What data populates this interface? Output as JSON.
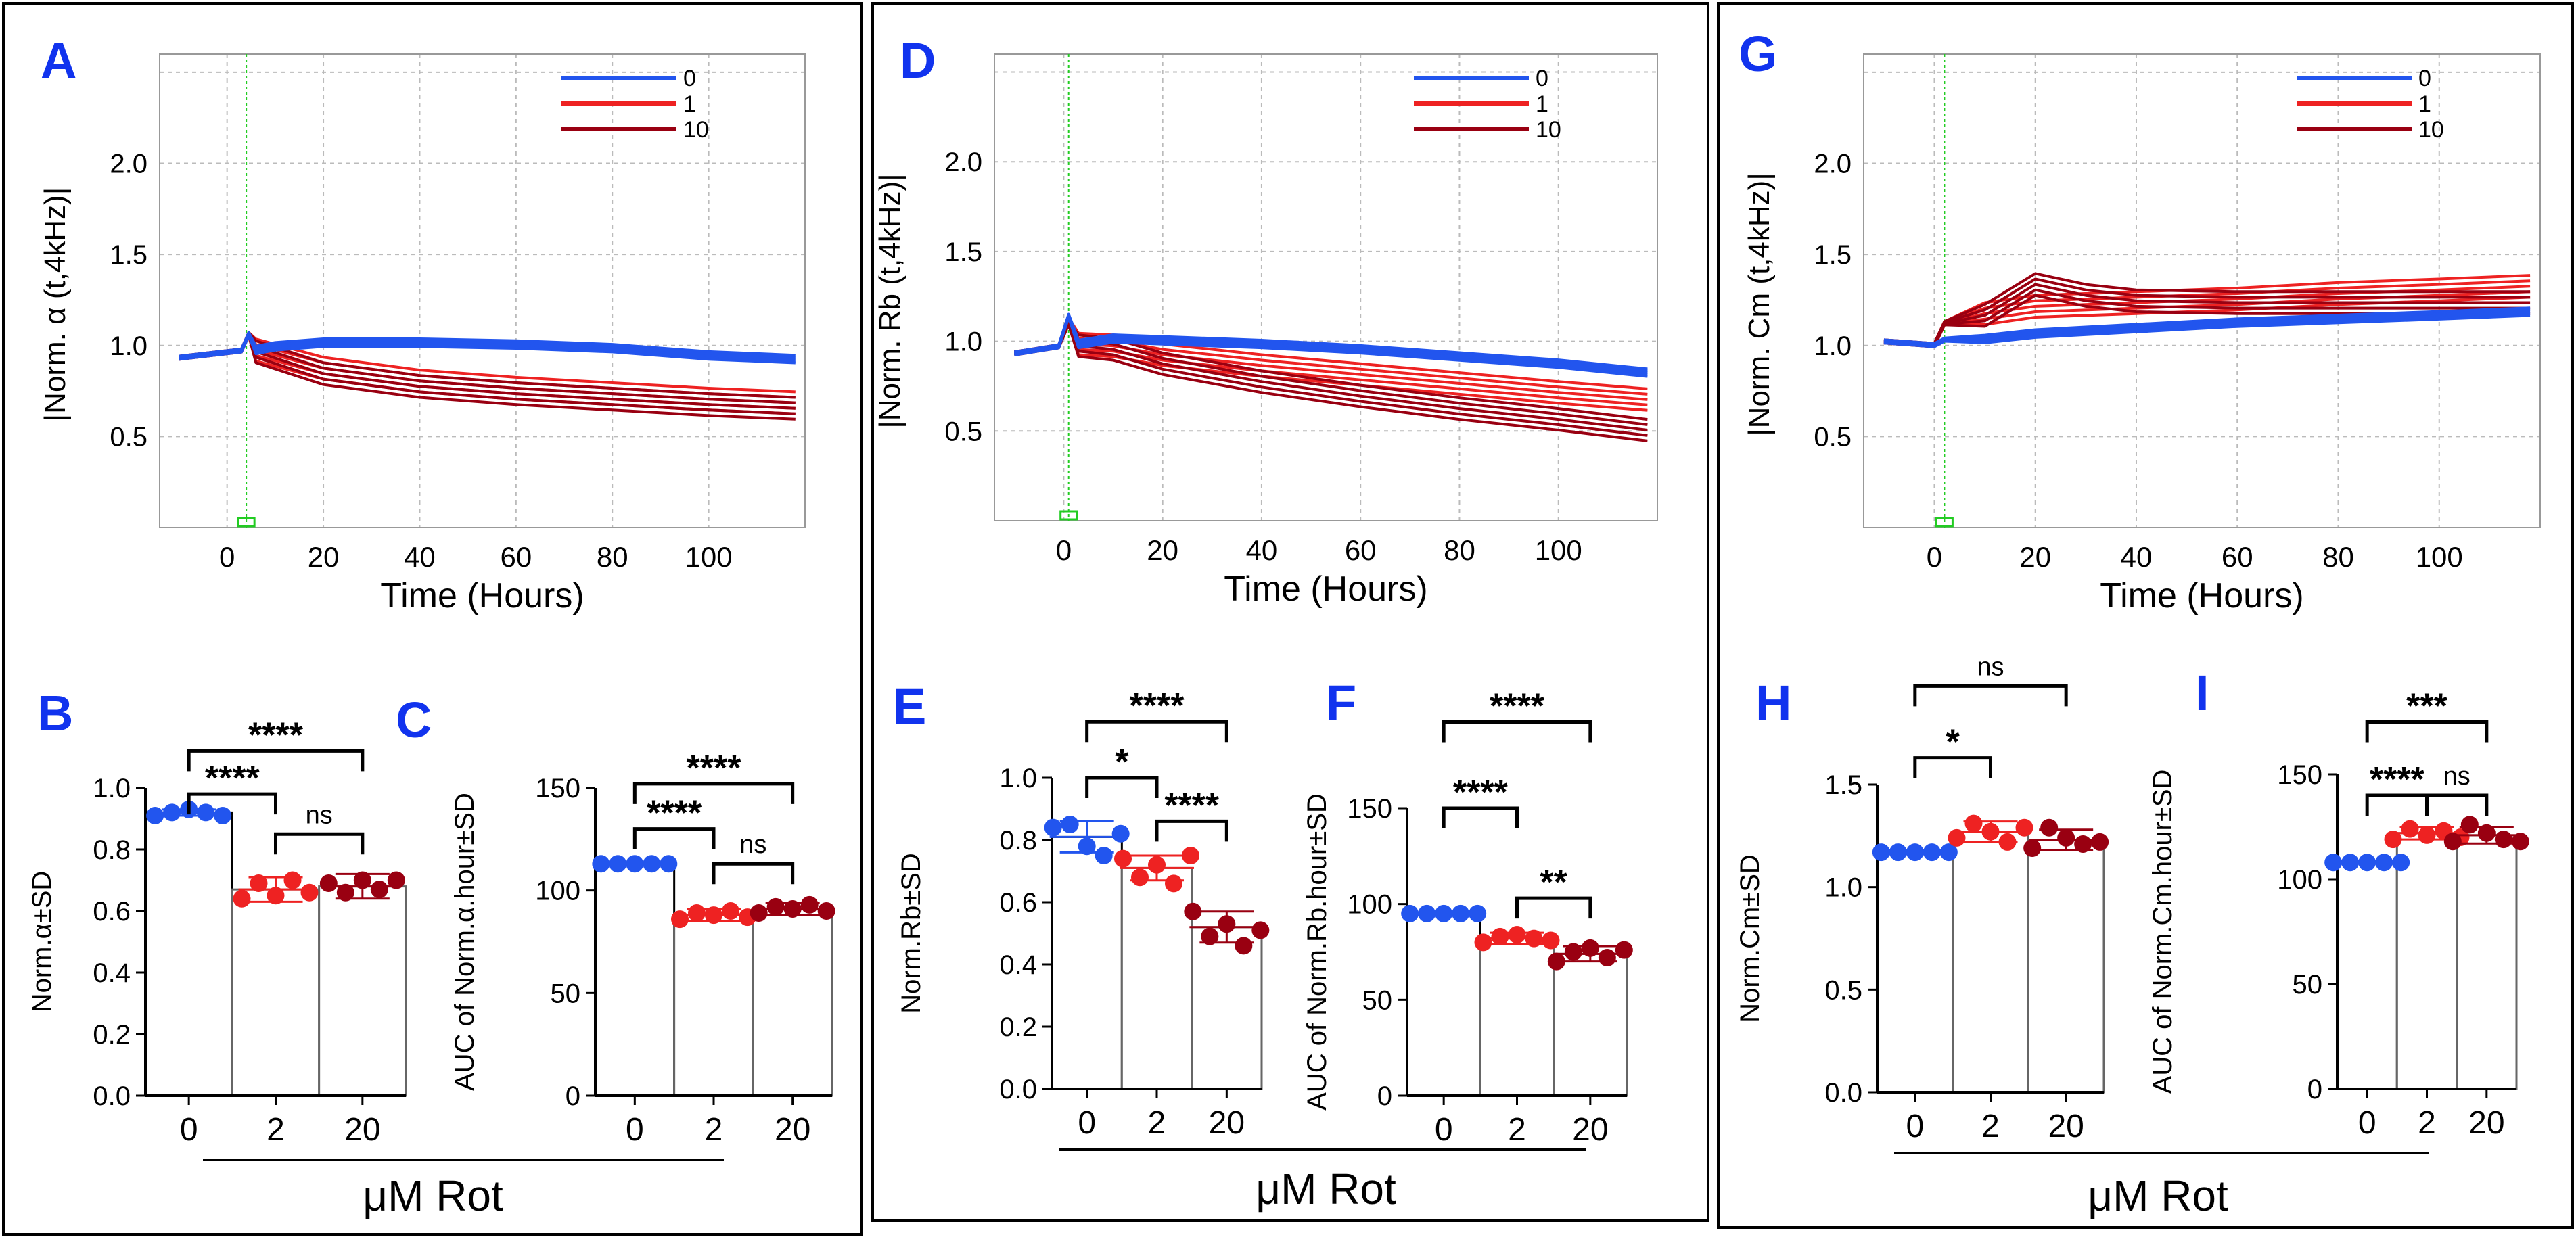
{
  "figure": {
    "xlabel": "μM Rot",
    "colors": {
      "c0": "#2255ee",
      "c1": "#ee2222",
      "c10": "#990011",
      "grid": "#bbbbbb",
      "label": "#1133ee",
      "axis": "#000000"
    }
  },
  "chart_data": [
    {
      "id": "A",
      "type": "line",
      "title": "A",
      "xlabel": "Time (Hours)",
      "ylabel": "|Norm. α (t,4kHz)|",
      "xlim": [
        -14,
        120
      ],
      "ylim": [
        0,
        2.6
      ],
      "xticks": [
        "0",
        "20",
        "40",
        "60",
        "80",
        "100"
      ],
      "xtick_values": [
        0,
        20,
        40,
        60,
        80,
        100
      ],
      "yticks": [
        "0.5",
        "1.0",
        "1.5",
        "2.0"
      ],
      "ytick_values": [
        0.5,
        1.0,
        1.5,
        2.0
      ],
      "grid": true,
      "legend": "top-right",
      "event_x": 4,
      "series": [
        {
          "name": "0",
          "color": "blue",
          "points": [
            [
              -10,
              0.93
            ],
            [
              3,
              0.97
            ],
            [
              4.5,
              1.06
            ],
            [
              6,
              0.97
            ],
            [
              10,
              0.99
            ],
            [
              20,
              1.01
            ],
            [
              40,
              1.01
            ],
            [
              60,
              1.0
            ],
            [
              80,
              0.98
            ],
            [
              100,
              0.94
            ],
            [
              118,
              0.92
            ]
          ]
        },
        {
          "name": "1",
          "color": "red",
          "points": [
            [
              -10,
              0.93
            ],
            [
              3,
              0.97
            ],
            [
              4.5,
              1.06
            ],
            [
              6,
              0.96
            ],
            [
              20,
              0.86
            ],
            [
              40,
              0.79
            ],
            [
              60,
              0.75
            ],
            [
              80,
              0.72
            ],
            [
              100,
              0.69
            ],
            [
              118,
              0.67
            ]
          ]
        },
        {
          "name": "10",
          "color": "darkred",
          "points": [
            [
              -10,
              0.93
            ],
            [
              3,
              0.97
            ],
            [
              4.5,
              1.06
            ],
            [
              6,
              0.95
            ],
            [
              20,
              0.83
            ],
            [
              40,
              0.76
            ],
            [
              60,
              0.72
            ],
            [
              80,
              0.69
            ],
            [
              100,
              0.66
            ],
            [
              118,
              0.64
            ]
          ]
        }
      ]
    },
    {
      "id": "D",
      "type": "line",
      "title": "D",
      "xlabel": "Time (Hours)",
      "ylabel": "|Norm. Rb (t,4kHz)|",
      "xlim": [
        -14,
        120
      ],
      "ylim": [
        0,
        2.6
      ],
      "xticks": [
        "0",
        "20",
        "40",
        "60",
        "80",
        "100"
      ],
      "xtick_values": [
        0,
        20,
        40,
        60,
        80,
        100
      ],
      "yticks": [
        "0.5",
        "1.0",
        "1.5",
        "2.0"
      ],
      "ytick_values": [
        0.5,
        1.0,
        1.5,
        2.0
      ],
      "grid": true,
      "legend": "top-right",
      "event_x": 1,
      "series": [
        {
          "name": "0",
          "color": "blue",
          "points": [
            [
              -10,
              0.93
            ],
            [
              -1,
              0.97
            ],
            [
              1,
              1.14
            ],
            [
              3,
              0.98
            ],
            [
              10,
              1.01
            ],
            [
              20,
              1.0
            ],
            [
              40,
              0.98
            ],
            [
              60,
              0.95
            ],
            [
              80,
              0.91
            ],
            [
              100,
              0.87
            ],
            [
              118,
              0.82
            ]
          ]
        },
        {
          "name": "1",
          "color": "red",
          "points": [
            [
              -10,
              0.93
            ],
            [
              -1,
              0.97
            ],
            [
              1,
              1.12
            ],
            [
              3,
              0.97
            ],
            [
              10,
              0.96
            ],
            [
              20,
              0.91
            ],
            [
              40,
              0.85
            ],
            [
              60,
              0.8
            ],
            [
              80,
              0.75
            ],
            [
              100,
              0.7
            ],
            [
              118,
              0.66
            ]
          ]
        },
        {
          "name": "10",
          "color": "darkred",
          "points": [
            [
              -10,
              0.93
            ],
            [
              -1,
              0.97
            ],
            [
              1,
              1.1
            ],
            [
              3,
              0.96
            ],
            [
              10,
              0.94
            ],
            [
              20,
              0.86
            ],
            [
              40,
              0.76
            ],
            [
              60,
              0.68
            ],
            [
              80,
              0.61
            ],
            [
              100,
              0.55
            ],
            [
              118,
              0.49
            ]
          ]
        }
      ]
    },
    {
      "id": "G",
      "type": "line",
      "title": "G",
      "xlabel": "Time (Hours)",
      "ylabel": "|Norm. Cm (t,4kHz)|",
      "xlim": [
        -14,
        120
      ],
      "ylim": [
        0,
        2.6
      ],
      "xticks": [
        "0",
        "20",
        "40",
        "60",
        "80",
        "100"
      ],
      "xtick_values": [
        0,
        20,
        40,
        60,
        80,
        100
      ],
      "yticks": [
        "0.5",
        "1.0",
        "1.5",
        "2.0"
      ],
      "ytick_values": [
        0.5,
        1.0,
        1.5,
        2.0
      ],
      "grid": true,
      "legend": "top-right",
      "event_x": 2,
      "series": [
        {
          "name": "0",
          "color": "blue",
          "points": [
            [
              -10,
              1.02
            ],
            [
              0,
              1.0
            ],
            [
              2,
              1.03
            ],
            [
              10,
              1.03
            ],
            [
              20,
              1.06
            ],
            [
              40,
              1.09
            ],
            [
              60,
              1.12
            ],
            [
              80,
              1.14
            ],
            [
              100,
              1.16
            ],
            [
              118,
              1.18
            ]
          ]
        },
        {
          "name": "1",
          "color": "red",
          "points": [
            [
              -10,
              1.02
            ],
            [
              0,
              1.0
            ],
            [
              2,
              1.12
            ],
            [
              10,
              1.16
            ],
            [
              20,
              1.2
            ],
            [
              40,
              1.22
            ],
            [
              60,
              1.24
            ],
            [
              80,
              1.27
            ],
            [
              100,
              1.29
            ],
            [
              118,
              1.31
            ]
          ]
        },
        {
          "name": "10",
          "color": "darkred",
          "points": [
            [
              -10,
              1.02
            ],
            [
              0,
              1.0
            ],
            [
              2,
              1.12
            ],
            [
              10,
              1.15
            ],
            [
              20,
              1.32
            ],
            [
              30,
              1.26
            ],
            [
              40,
              1.23
            ],
            [
              60,
              1.22
            ],
            [
              80,
              1.22
            ],
            [
              100,
              1.22
            ],
            [
              118,
              1.22
            ]
          ]
        }
      ]
    },
    {
      "id": "B",
      "type": "bar",
      "title": "B",
      "ylabel": "Norm.α±SD",
      "ylim": [
        0,
        1.0
      ],
      "yticks": [
        "0.0",
        "0.2",
        "0.4",
        "0.6",
        "0.8",
        "1.0"
      ],
      "ytick_values": [
        0,
        0.2,
        0.4,
        0.6,
        0.8,
        1.0
      ],
      "categories": [
        "0",
        "2",
        "20"
      ],
      "values": [
        0.92,
        0.67,
        0.68
      ],
      "sd": [
        0.01,
        0.04,
        0.04
      ],
      "points": [
        [
          0.91,
          0.92,
          0.93,
          0.92,
          0.91
        ],
        [
          0.64,
          0.69,
          0.65,
          0.7,
          0.66
        ],
        [
          0.69,
          0.66,
          0.7,
          0.67,
          0.7
        ]
      ],
      "significance": [
        {
          "pair": [
            0,
            1
          ],
          "label": "****",
          "level": 0.98
        },
        {
          "pair": [
            0,
            2
          ],
          "label": "****",
          "level": 1.12
        },
        {
          "pair": [
            1,
            2
          ],
          "label": "ns",
          "level": 0.85
        }
      ]
    },
    {
      "id": "C",
      "type": "bar",
      "title": "C",
      "ylabel": "AUC of Norm.α.hour±SD",
      "ylim": [
        0,
        150
      ],
      "yticks": [
        "0",
        "50",
        "100",
        "150"
      ],
      "ytick_values": [
        0,
        50,
        100,
        150
      ],
      "categories": [
        "0",
        "2",
        "20"
      ],
      "values": [
        113,
        88,
        91
      ],
      "sd": [
        0.5,
        3,
        3
      ],
      "points": [
        [
          113,
          113,
          113,
          113,
          113
        ],
        [
          86,
          89,
          88,
          90,
          87
        ],
        [
          89,
          92,
          91,
          93,
          90
        ]
      ],
      "significance": [
        {
          "pair": [
            0,
            1
          ],
          "label": "****",
          "level": 130
        },
        {
          "pair": [
            0,
            2
          ],
          "label": "****",
          "level": 152
        },
        {
          "pair": [
            1,
            2
          ],
          "label": "ns",
          "level": 113
        }
      ]
    },
    {
      "id": "E",
      "type": "bar",
      "title": "E",
      "ylabel": "Norm.Rb±SD",
      "ylim": [
        0,
        1.0
      ],
      "yticks": [
        "0.0",
        "0.2",
        "0.4",
        "0.6",
        "0.8",
        "1.0"
      ],
      "ytick_values": [
        0,
        0.2,
        0.4,
        0.6,
        0.8,
        1.0
      ],
      "categories": [
        "0",
        "2",
        "20"
      ],
      "values": [
        0.81,
        0.71,
        0.52
      ],
      "sd": [
        0.05,
        0.04,
        0.05
      ],
      "points": [
        [
          0.84,
          0.85,
          0.78,
          0.75,
          0.82
        ],
        [
          0.74,
          0.68,
          0.72,
          0.66,
          0.75
        ],
        [
          0.57,
          0.49,
          0.53,
          0.46,
          0.51
        ]
      ],
      "significance": [
        {
          "pair": [
            0,
            1
          ],
          "label": "*",
          "level": 1.0
        },
        {
          "pair": [
            0,
            2
          ],
          "label": "****",
          "level": 1.18
        },
        {
          "pair": [
            1,
            2
          ],
          "label": "****",
          "level": 0.86
        }
      ]
    },
    {
      "id": "F",
      "type": "bar",
      "title": "F",
      "ylabel": "AUC of Norm.Rb.hour±SD",
      "ylim": [
        0,
        150
      ],
      "yticks": [
        "0",
        "50",
        "100",
        "150"
      ],
      "ytick_values": [
        0,
        50,
        100,
        150
      ],
      "categories": [
        "0",
        "2",
        "20"
      ],
      "values": [
        95,
        82,
        74
      ],
      "sd": [
        0.5,
        3,
        4
      ],
      "points": [
        [
          95,
          95,
          95,
          95,
          95
        ],
        [
          80,
          83,
          84,
          82,
          81
        ],
        [
          70,
          75,
          77,
          72,
          76
        ]
      ],
      "significance": [
        {
          "pair": [
            0,
            1
          ],
          "label": "****",
          "level": 150
        },
        {
          "pair": [
            0,
            2
          ],
          "label": "****",
          "level": 195
        },
        {
          "pair": [
            1,
            2
          ],
          "label": "**",
          "level": 103
        }
      ]
    },
    {
      "id": "H",
      "type": "bar",
      "title": "H",
      "ylabel": "Norm.Cm±SD",
      "ylim": [
        0,
        1.5
      ],
      "yticks": [
        "0.0",
        "0.5",
        "1.0",
        "1.5"
      ],
      "ytick_values": [
        0,
        0.5,
        1.0,
        1.5
      ],
      "categories": [
        "0",
        "2",
        "20"
      ],
      "values": [
        1.17,
        1.27,
        1.23
      ],
      "sd": [
        0.01,
        0.05,
        0.05
      ],
      "points": [
        [
          1.17,
          1.17,
          1.17,
          1.17,
          1.17
        ],
        [
          1.24,
          1.31,
          1.27,
          1.22,
          1.29
        ],
        [
          1.19,
          1.29,
          1.24,
          1.21,
          1.22
        ]
      ],
      "significance": [
        {
          "pair": [
            0,
            1
          ],
          "label": "*",
          "level": 1.63
        },
        {
          "pair": [
            0,
            2
          ],
          "label": "ns",
          "level": 1.98
        }
      ]
    },
    {
      "id": "I",
      "type": "bar",
      "title": "I",
      "ylabel": "AUC of Norm.Cm.hour±SD",
      "ylim": [
        0,
        150
      ],
      "yticks": [
        "0",
        "50",
        "100",
        "150"
      ],
      "ytick_values": [
        0,
        50,
        100,
        150
      ],
      "categories": [
        "0",
        "2",
        "20"
      ],
      "values": [
        108,
        122,
        121
      ],
      "sd": [
        0.5,
        3,
        4
      ],
      "points": [
        [
          108,
          108,
          108,
          108,
          108
        ],
        [
          119,
          124,
          121,
          123,
          120
        ],
        [
          118,
          126,
          122,
          119,
          118
        ]
      ],
      "significance": [
        {
          "pair": [
            0,
            1
          ],
          "label": "****",
          "level": 140
        },
        {
          "pair": [
            0,
            2
          ],
          "label": "***",
          "level": 175
        },
        {
          "pair": [
            1,
            2
          ],
          "label": "ns",
          "level": 140
        }
      ]
    }
  ]
}
